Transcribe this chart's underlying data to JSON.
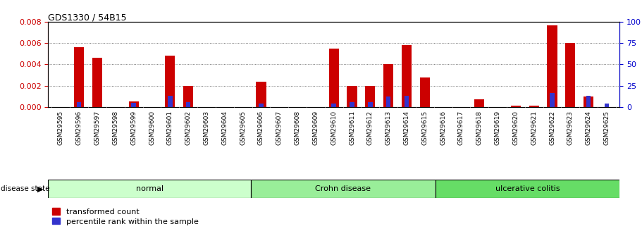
{
  "title": "GDS1330 / 54B15",
  "samples": [
    "GSM29595",
    "GSM29596",
    "GSM29597",
    "GSM29598",
    "GSM29599",
    "GSM29600",
    "GSM29601",
    "GSM29602",
    "GSM29603",
    "GSM29604",
    "GSM29605",
    "GSM29606",
    "GSM29607",
    "GSM29608",
    "GSM29609",
    "GSM29610",
    "GSM29611",
    "GSM29612",
    "GSM29613",
    "GSM29614",
    "GSM29615",
    "GSM29616",
    "GSM29617",
    "GSM29618",
    "GSM29619",
    "GSM29620",
    "GSM29621",
    "GSM29622",
    "GSM29623",
    "GSM29624",
    "GSM29625"
  ],
  "transformed_count": [
    0.0,
    0.0056,
    0.0046,
    0.0,
    0.0005,
    0.0,
    0.0048,
    0.002,
    0.0,
    0.0,
    0.0,
    0.0024,
    0.0,
    0.0,
    0.0,
    0.0055,
    0.002,
    0.002,
    0.004,
    0.0058,
    0.0028,
    0.0,
    0.0,
    0.0007,
    0.0,
    0.0001,
    0.0001,
    0.0077,
    0.006,
    0.001,
    0.0
  ],
  "percentile_rank": [
    0.0,
    6.0,
    0.0,
    0.0,
    5.0,
    0.0,
    13.0,
    6.0,
    0.0,
    0.0,
    0.0,
    4.0,
    0.0,
    0.0,
    0.0,
    4.0,
    6.0,
    6.0,
    12.0,
    13.0,
    0.0,
    0.0,
    0.0,
    0.0,
    0.0,
    0.0,
    0.0,
    16.0,
    0.0,
    13.0,
    4.0
  ],
  "disease_groups": [
    {
      "label": "normal",
      "start": 0,
      "end": 10,
      "color": "#ccffcc"
    },
    {
      "label": "Crohn disease",
      "start": 11,
      "end": 20,
      "color": "#99ee99"
    },
    {
      "label": "ulcerative colitis",
      "start": 21,
      "end": 30,
      "color": "#66dd66"
    }
  ],
  "ylim_left": [
    0,
    0.008
  ],
  "ylim_right": [
    0,
    100
  ],
  "yticks_left": [
    0,
    0.002,
    0.004,
    0.006,
    0.008
  ],
  "yticks_right": [
    0,
    25,
    50,
    75,
    100
  ],
  "bar_color_red": "#cc0000",
  "bar_color_blue": "#3333cc",
  "grid_color": "#555555",
  "left_axis_color": "#cc0000",
  "right_axis_color": "#0000cc",
  "bg_color": "#ffffff",
  "xtick_bg": "#cccccc",
  "disease_label": "disease state",
  "legend_red": "transformed count",
  "legend_blue": "percentile rank within the sample",
  "bar_width": 0.55,
  "blue_bar_width": 0.25,
  "percentile_scale": 8e-05
}
